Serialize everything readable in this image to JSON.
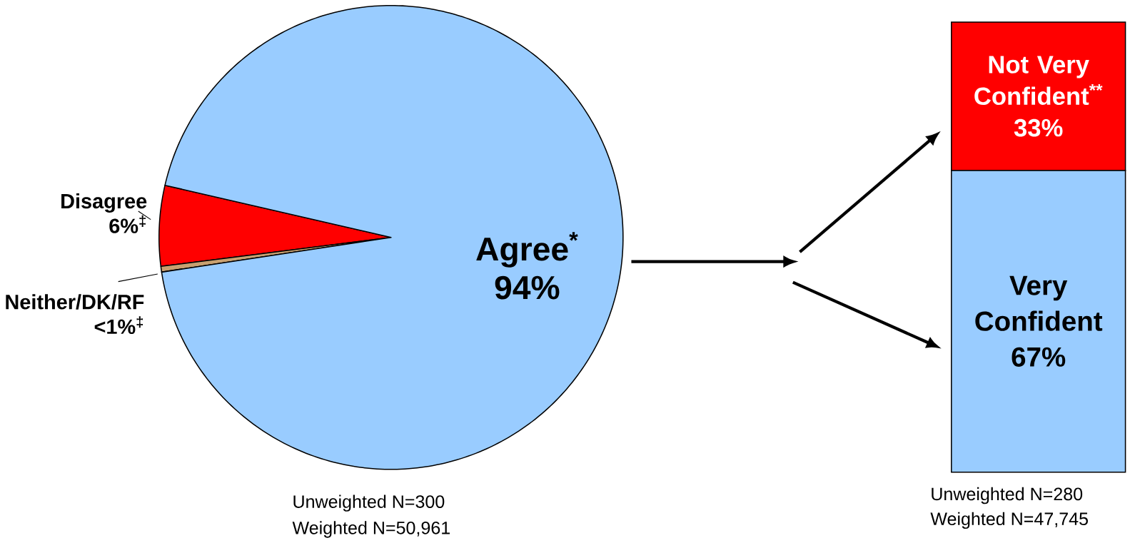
{
  "chart_data": [
    {
      "type": "pie",
      "categories": [
        "Agree$^{*}$",
        "Disagree",
        "Neither/DK/RF"
      ],
      "values": [
        94,
        5.6,
        0.4
      ],
      "value_labels": [
        "94%",
        "6%$^{‡}$",
        "<1%$^{‡}$"
      ],
      "colors": [
        "#99ccff",
        "#ff0000",
        "#c8a070"
      ],
      "annotations": [
        "Unweighted N=300",
        "Weighted N=50,961"
      ]
    },
    {
      "type": "bar",
      "stacked": true,
      "categories": [
        null
      ],
      "series": [
        {
          "name": "Very Confident",
          "color": "#99ccff",
          "values": [
            67
          ],
          "value_labels": [
            "67%"
          ]
        },
        {
          "name": "Not Very Confident$^{**}$",
          "color": "#ff0000",
          "values": [
            33
          ],
          "value_labels": [
            "33%"
          ]
        }
      ],
      "annotations": [
        "Unweighted N=280",
        "Weighted N=47,745"
      ]
    }
  ]
}
